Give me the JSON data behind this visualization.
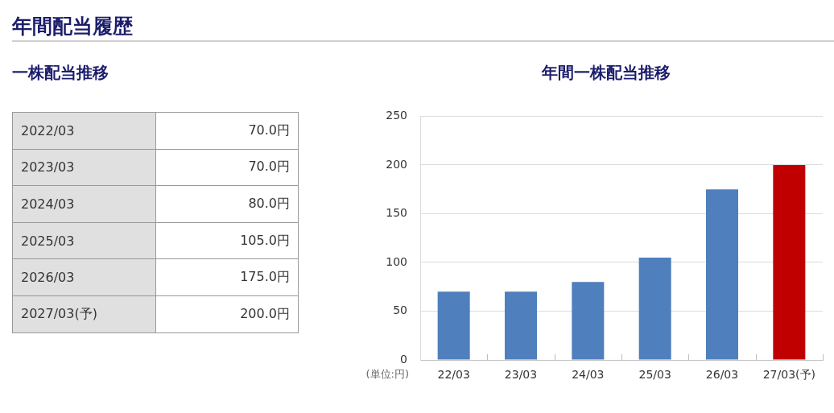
{
  "chart_data": [
    {
      "type": "other",
      "title": "年間配当履歴",
      "subtitle": "一株配当推移",
      "categories": [
        "2022/03",
        "2023/03",
        "2024/03",
        "2025/03",
        "2026/03",
        "2027/03(予)"
      ],
      "value_labels": [
        "70.0円",
        "70.0円",
        "80.0円",
        "105.0円",
        "175.0円",
        "200.0円"
      ]
    },
    {
      "type": "bar",
      "title": "年間一株配当推移",
      "categories": [
        "22/03",
        "23/03",
        "24/03",
        "25/03",
        "26/03",
        "27/03(予)"
      ],
      "values": [
        70,
        70,
        80,
        105,
        175,
        200
      ],
      "colors": [
        "#4f7fbc",
        "#4f7fbc",
        "#4f7fbc",
        "#4f7fbc",
        "#4f7fbc",
        "#c00000"
      ],
      "ylim": [
        0,
        250
      ],
      "yticks": [
        0,
        50,
        100,
        150,
        200,
        250
      ],
      "grid": "y",
      "annotations": [
        "(単位:円)"
      ]
    }
  ]
}
